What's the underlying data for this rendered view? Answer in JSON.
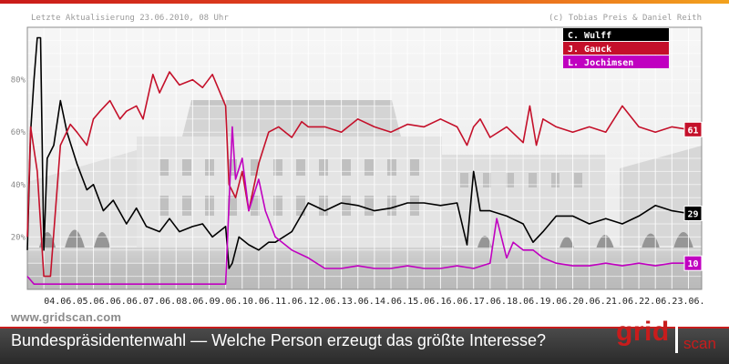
{
  "header": {
    "updated": "Letzte Aktualisierung 23.06.2010, 08 Uhr",
    "copyright": "(c) Tobias Preis & Daniel Reith"
  },
  "footer": {
    "site": "www.gridscan.com",
    "title": "Bundespräsidentenwahl — Welche Person erzeugt das größte Interesse?"
  },
  "logo": {
    "part1": "grid",
    "part2": "scan"
  },
  "colors": {
    "wulff": "#000000",
    "gauck": "#c4102a",
    "jochimsen": "#c000c0",
    "brand": "#c81c1c"
  },
  "chart_data": {
    "type": "line",
    "ylabel": "",
    "xlabel": "",
    "ylim": [
      0,
      100
    ],
    "y_ticks": [
      20,
      40,
      60,
      80
    ],
    "y_tick_labels": [
      "20%",
      "40%",
      "60%",
      "80%"
    ],
    "x_ticks": [
      "04.06.",
      "05.06.",
      "06.06.",
      "07.06.",
      "08.06.",
      "09.06.",
      "10.06.",
      "11.06.",
      "12.06.",
      "13.06.",
      "14.06.",
      "15.06.",
      "16.06.",
      "17.06.",
      "18.06.",
      "19.06.",
      "20.06.",
      "21.06.",
      "22.06.",
      "23.06."
    ],
    "grid": true,
    "legend_position": "top-right",
    "series": [
      {
        "name": "C. Wulff",
        "end_label": "29",
        "x": [
          3.0,
          3.1,
          3.2,
          3.3,
          3.4,
          3.5,
          3.6,
          3.8,
          4.0,
          4.2,
          4.5,
          4.8,
          5.0,
          5.3,
          5.6,
          6.0,
          6.3,
          6.6,
          7.0,
          7.3,
          7.6,
          8.0,
          8.3,
          8.6,
          9.0,
          9.1,
          9.2,
          9.4,
          9.7,
          10.0,
          10.3,
          10.5,
          11.0,
          11.5,
          12.0,
          12.5,
          13.0,
          13.5,
          14.0,
          14.5,
          15.0,
          15.5,
          16.0,
          16.3,
          16.5,
          16.7,
          17.0,
          17.5,
          18.0,
          18.3,
          18.6,
          19.0,
          19.5,
          20.0,
          20.5,
          21.0,
          21.5,
          22.0,
          22.5,
          23.0,
          23.3
        ],
        "y": [
          15,
          60,
          80,
          96,
          96,
          15,
          50,
          55,
          72,
          60,
          48,
          38,
          40,
          30,
          34,
          25,
          31,
          24,
          22,
          27,
          22,
          24,
          25,
          20,
          24,
          8,
          10,
          20,
          17,
          15,
          18,
          18,
          22,
          33,
          30,
          33,
          32,
          30,
          31,
          33,
          33,
          32,
          33,
          17,
          45,
          30,
          30,
          28,
          25,
          18,
          22,
          28,
          28,
          25,
          27,
          25,
          28,
          32,
          30,
          29,
          29
        ]
      },
      {
        "name": "J. Gauck",
        "end_label": "61",
        "x": [
          3.0,
          3.1,
          3.3,
          3.5,
          3.7,
          4.0,
          4.3,
          4.5,
          4.8,
          5.0,
          5.2,
          5.5,
          5.8,
          6.0,
          6.3,
          6.5,
          6.8,
          7.0,
          7.3,
          7.6,
          8.0,
          8.3,
          8.6,
          9.0,
          9.1,
          9.3,
          9.5,
          9.7,
          10.0,
          10.3,
          10.6,
          11.0,
          11.3,
          11.5,
          12.0,
          12.5,
          13.0,
          13.5,
          14.0,
          14.5,
          15.0,
          15.5,
          16.0,
          16.3,
          16.5,
          16.7,
          17.0,
          17.5,
          18.0,
          18.2,
          18.4,
          18.6,
          19.0,
          19.5,
          20.0,
          20.5,
          21.0,
          21.5,
          22.0,
          22.5,
          23.0,
          23.3
        ],
        "y": [
          20,
          62,
          45,
          5,
          5,
          55,
          63,
          60,
          55,
          65,
          68,
          72,
          65,
          68,
          70,
          65,
          82,
          75,
          83,
          78,
          80,
          77,
          82,
          70,
          40,
          35,
          45,
          30,
          48,
          60,
          62,
          58,
          64,
          62,
          62,
          60,
          65,
          62,
          60,
          63,
          62,
          65,
          62,
          55,
          62,
          65,
          58,
          62,
          56,
          70,
          55,
          65,
          62,
          60,
          62,
          60,
          70,
          62,
          60,
          62,
          61,
          61
        ]
      },
      {
        "name": "L. Jochimsen",
        "end_label": "10",
        "x": [
          3.0,
          3.2,
          3.4,
          3.6,
          3.8,
          4.0,
          5.0,
          6.0,
          7.0,
          8.0,
          9.0,
          9.2,
          9.3,
          9.5,
          9.7,
          10.0,
          10.2,
          10.5,
          11.0,
          11.5,
          12.0,
          12.5,
          13.0,
          13.5,
          14.0,
          14.5,
          15.0,
          15.5,
          16.0,
          16.5,
          17.0,
          17.2,
          17.5,
          17.7,
          18.0,
          18.3,
          18.6,
          19.0,
          19.5,
          20.0,
          20.5,
          21.0,
          21.5,
          22.0,
          22.5,
          23.0,
          23.3
        ],
        "y": [
          5,
          2,
          2,
          2,
          2,
          2,
          2,
          2,
          2,
          2,
          2,
          62,
          42,
          50,
          30,
          42,
          30,
          20,
          15,
          12,
          8,
          8,
          9,
          8,
          8,
          9,
          8,
          8,
          9,
          8,
          10,
          27,
          12,
          18,
          15,
          15,
          12,
          10,
          9,
          9,
          10,
          9,
          10,
          9,
          10,
          10,
          10
        ]
      }
    ]
  }
}
